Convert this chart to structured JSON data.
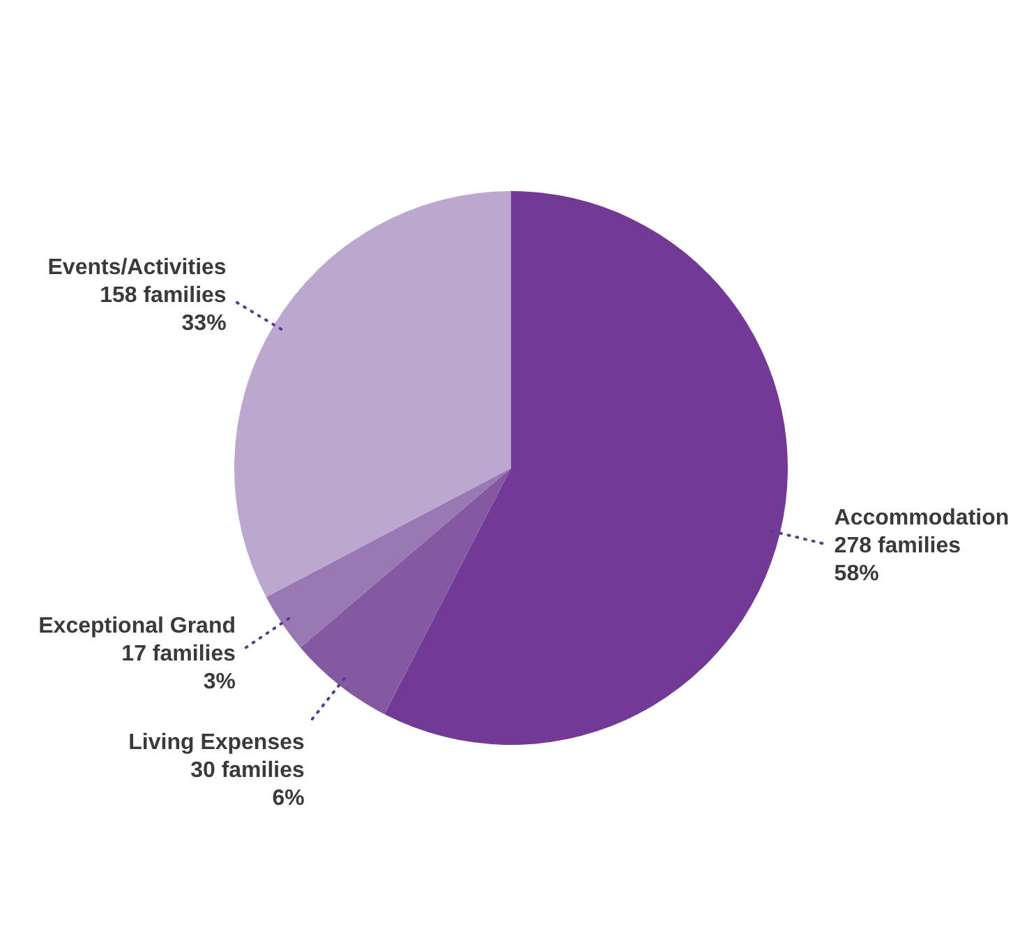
{
  "chart_data": {
    "type": "pie",
    "categories": [
      "Accommodation",
      "Living Expenses",
      "Exceptional Grand",
      "Events/Activities"
    ],
    "values": [
      278,
      30,
      17,
      158
    ],
    "colors": [
      "#723a96",
      "#8558a4",
      "#9a78b4",
      "#bca7d0"
    ],
    "value_labels": [
      "278 families\n58%",
      "30 families\n6%",
      "17 families\n3%",
      "158 families\n33%"
    ],
    "legend": false
  }
}
